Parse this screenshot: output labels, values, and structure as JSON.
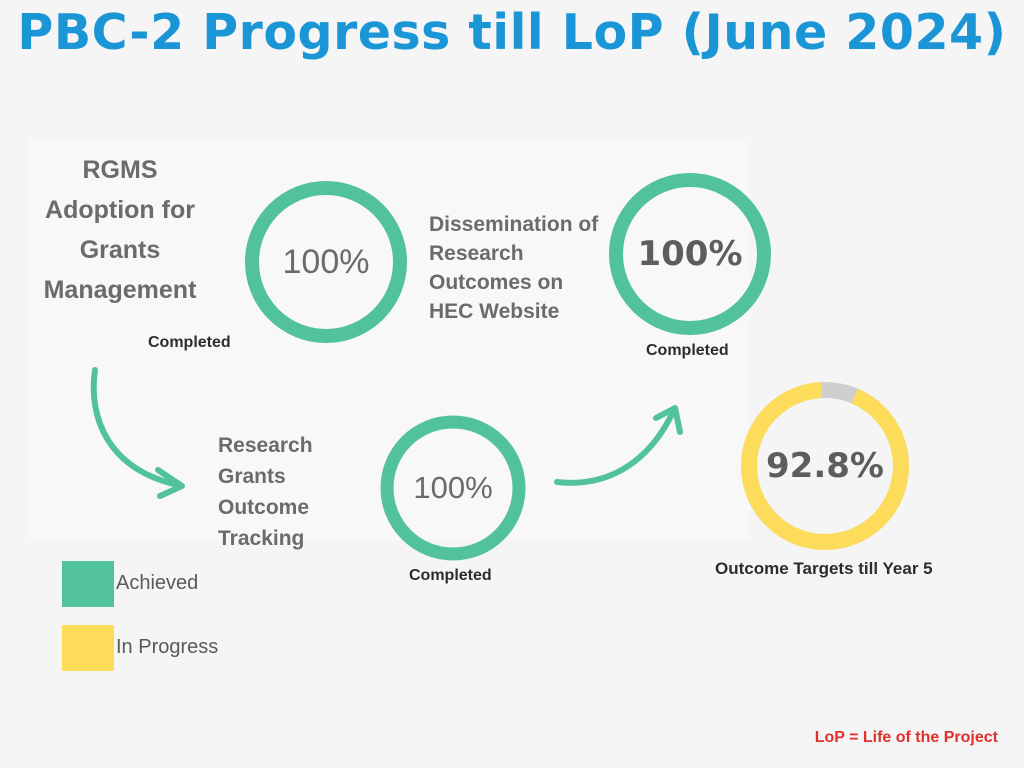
{
  "title": "PBC-2 Progress till LoP (June 2024)",
  "colors": {
    "achieved": "#52c29b",
    "in_progress": "#fddc5c",
    "remaining": "#cfcfcf",
    "title": "#1a95d6",
    "footnote": "#e0302e"
  },
  "chart_data": [
    {
      "type": "pie",
      "name": "RGMS Adoption for Grants Management",
      "value_label": "100%",
      "percent": 100,
      "status": "Completed"
    },
    {
      "type": "pie",
      "name": "Dissemination of Research Outcomes on HEC Website",
      "value_label": "100%",
      "percent": 100,
      "status": "Completed"
    },
    {
      "type": "pie",
      "name": "Research Grants Outcome Tracking",
      "value_label": "100%",
      "percent": 100,
      "status": "Completed"
    },
    {
      "type": "pie",
      "name": "Outcome Targets till Year 5",
      "value_label": "92.8%",
      "percent": 92.8,
      "status": ""
    }
  ],
  "items": {
    "rgms": {
      "line1": "RGMS",
      "line2": "Adoption for",
      "line3": "Grants",
      "line4": "Management",
      "status": "Completed",
      "value": "100%"
    },
    "dissemination": {
      "line1": "Dissemination of",
      "line2": "Research",
      "line3": "Outcomes on",
      "line4": "HEC Website",
      "status": "Completed",
      "value": "100%"
    },
    "tracking": {
      "line1": "Research",
      "line2": "Grants",
      "line3": "Outcome",
      "line4": "Tracking",
      "status": "Completed",
      "value": "100%"
    },
    "targets": {
      "label": "Outcome Targets till Year 5",
      "value": "92.8%"
    }
  },
  "legend": [
    {
      "label": "Achieved"
    },
    {
      "label": "In Progress"
    }
  ],
  "footnote": "LoP = Life of the Project"
}
